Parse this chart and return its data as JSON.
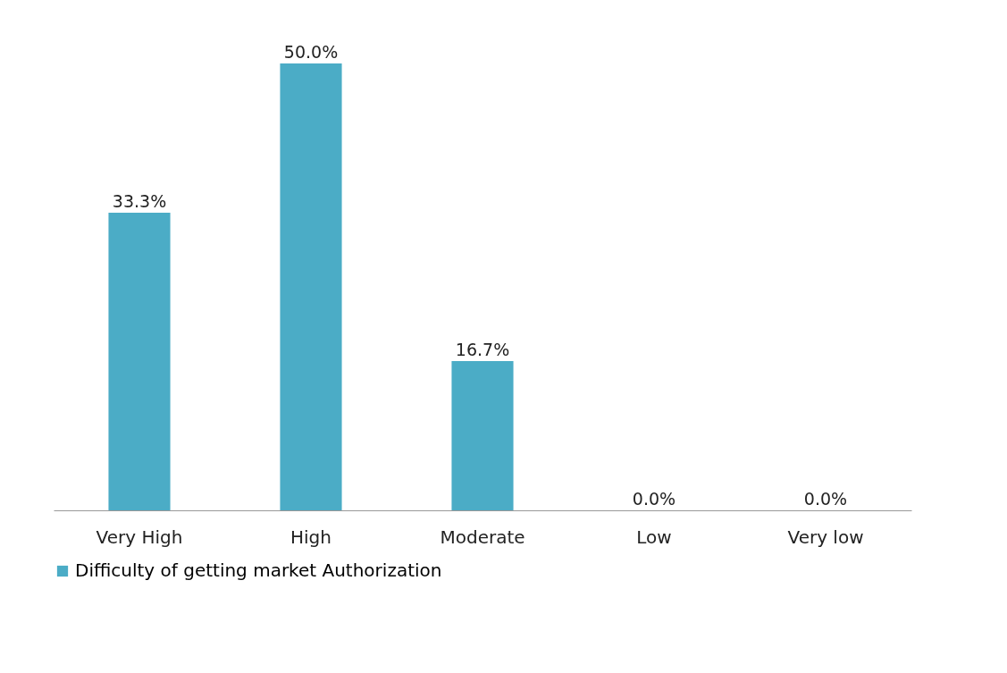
{
  "chart_data": {
    "type": "bar",
    "categories": [
      "Very High",
      "High",
      "Moderate",
      "Low",
      "Very low"
    ],
    "series": [
      {
        "name": "Difficulty of getting market Authorization",
        "color": "#4bacc6",
        "values": [
          33.3,
          50.0,
          16.7,
          0.0,
          0.0
        ],
        "value_labels": [
          "33.3%",
          "50.0%",
          "16.7%",
          "0.0%",
          "0.0%"
        ]
      }
    ],
    "legend": "bottom",
    "grid": false
  }
}
